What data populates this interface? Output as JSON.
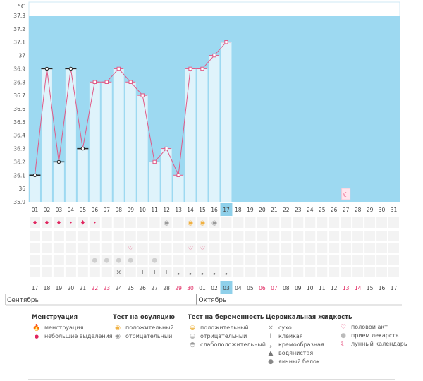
{
  "chart_data": {
    "type": "line",
    "unit_label": "°C",
    "ylim": [
      35.9,
      37.4
    ],
    "y_ticks": [
      "37.3",
      "37.2",
      "37.1",
      "37",
      "36.9",
      "36.8",
      "36.7",
      "36.6",
      "36.5",
      "36.4",
      "36.3",
      "36.2",
      "36.1",
      "36",
      "35.9"
    ],
    "x_top": [
      "01",
      "02",
      "03",
      "04",
      "05",
      "06",
      "07",
      "08",
      "09",
      "10",
      "11",
      "12",
      "13",
      "14",
      "15",
      "16",
      "17",
      "18",
      "19",
      "20",
      "21",
      "22",
      "23",
      "24",
      "25",
      "26",
      "27",
      "28",
      "29",
      "30",
      "31"
    ],
    "x_bottom": [
      "17",
      "18",
      "19",
      "20",
      "21",
      "22",
      "23",
      "24",
      "25",
      "26",
      "27",
      "28",
      "29",
      "30",
      "01",
      "02",
      "03",
      "04",
      "05",
      "06",
      "07",
      "08",
      "09",
      "10",
      "11",
      "12",
      "13",
      "14",
      "15",
      "16",
      "17"
    ],
    "x_bottom_red": [
      5,
      6,
      12,
      13,
      19,
      20,
      26,
      27
    ],
    "today_index": 16,
    "months": [
      "Сентябрь",
      "Октябрь"
    ],
    "temps": [
      36.1,
      36.9,
      36.2,
      36.9,
      36.3,
      36.8,
      36.8,
      36.9,
      36.8,
      36.7,
      36.2,
      36.3,
      36.1,
      36.9,
      36.9,
      37.0,
      37.1
    ],
    "markers": [
      "line",
      "line",
      "line",
      "line",
      "line",
      "point",
      "point",
      "point",
      "point",
      "point",
      "point",
      "point",
      "point",
      "point",
      "point",
      "point",
      "point"
    ],
    "colors": {
      "bg": "#9dd9f1",
      "bar": "#dff3fb",
      "line": "#e05a87",
      "white_band": "#ffffff",
      "today": "#8fd0ea",
      "red": "#e0245e"
    },
    "rows": {
      "menstruation": {
        "0": "drop",
        "1": "drop",
        "2": "drop",
        "3": "small",
        "4": "drop",
        "5": "small"
      },
      "ovulation": {
        "11": "neg",
        "13": "pos",
        "14": "pos",
        "15": "neg"
      },
      "intercourse": {
        "8": "heart",
        "13": "heart",
        "14": "heart"
      },
      "medicine": {
        "5": "pill",
        "6": "pill",
        "7": "pill",
        "8": "pill",
        "10": "pill"
      },
      "fluid": {
        "7": "dry",
        "9": "sticky",
        "10": "sticky",
        "11": "sticky",
        "12": "creamy",
        "13": "creamy",
        "14": "creamy",
        "15": "creamy",
        "16": "creamy"
      },
      "moon": {
        "26": "moon"
      }
    }
  },
  "legend": {
    "menstruation": {
      "title": "Менструация",
      "items": [
        "менструация",
        "небольшие выделения"
      ]
    },
    "ovulation": {
      "title": "Тест на овуляцию",
      "items": [
        "положительный",
        "отрицательный"
      ]
    },
    "pregnancy": {
      "title": "Тест на беременность",
      "items": [
        "положительный",
        "отрицательный",
        "слабоположительный"
      ]
    },
    "fluid": {
      "title": "Цервикальная жидкость",
      "items": [
        "сухо",
        "клейкая",
        "кремообразная",
        "водянистая",
        "яичный белок"
      ]
    },
    "other": {
      "items": [
        "половой акт",
        "прием лекарств",
        "лунный календарь"
      ]
    }
  }
}
